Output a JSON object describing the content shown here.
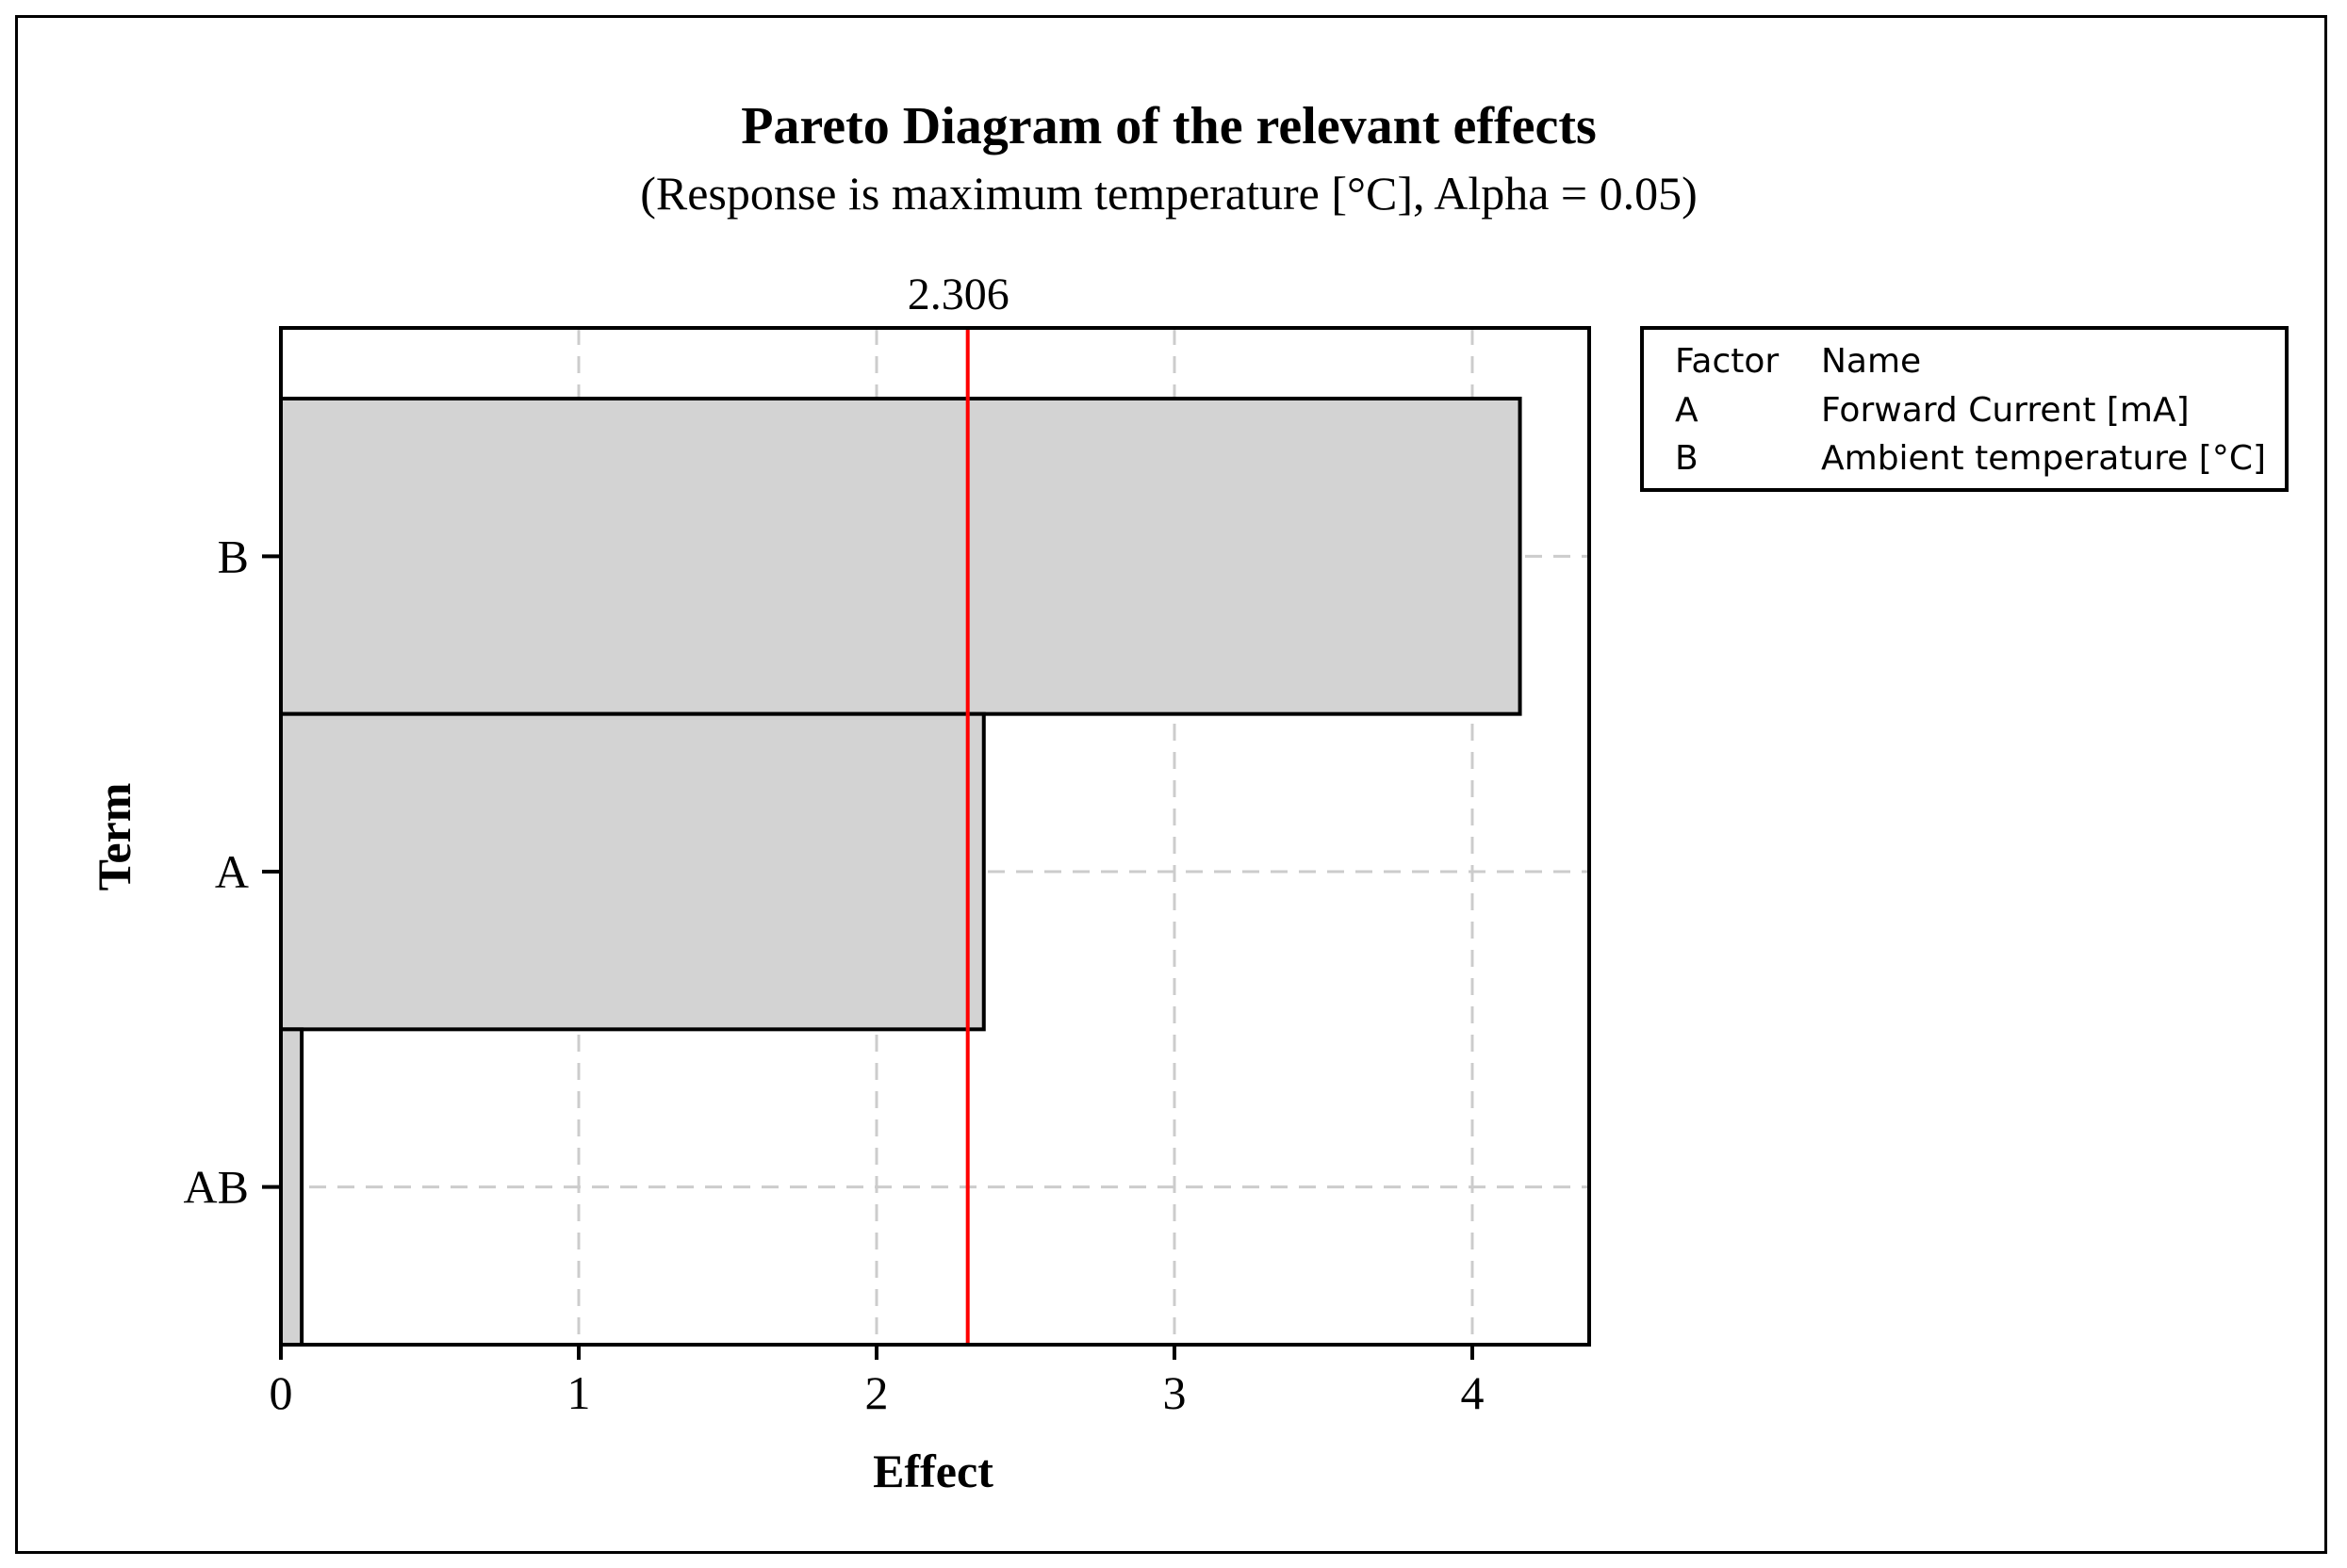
{
  "chart_data": {
    "type": "bar",
    "orientation": "horizontal",
    "title": "Pareto Diagram of the relevant effects",
    "subtitle": "(Response is maximum temperature [°C], Alpha = 0.05)",
    "xlabel": "Effect",
    "ylabel": "Term",
    "categories": [
      "B",
      "A",
      "AB"
    ],
    "values": [
      4.16,
      2.36,
      0.07
    ],
    "xlim": [
      0,
      4.4
    ],
    "xticks": [
      "0",
      "1",
      "2",
      "3",
      "4"
    ],
    "reference_line": {
      "value": 2.306,
      "label": "2.306",
      "color": "#ff0000"
    },
    "bar_color": "#d3d3d3",
    "grid": true,
    "legend": {
      "placement": "top-right",
      "header": [
        "Factor",
        "Name"
      ],
      "rows": [
        [
          "A",
          "Forward Current [mA]"
        ],
        [
          "B",
          "Ambient temperature [°C]"
        ]
      ]
    }
  }
}
